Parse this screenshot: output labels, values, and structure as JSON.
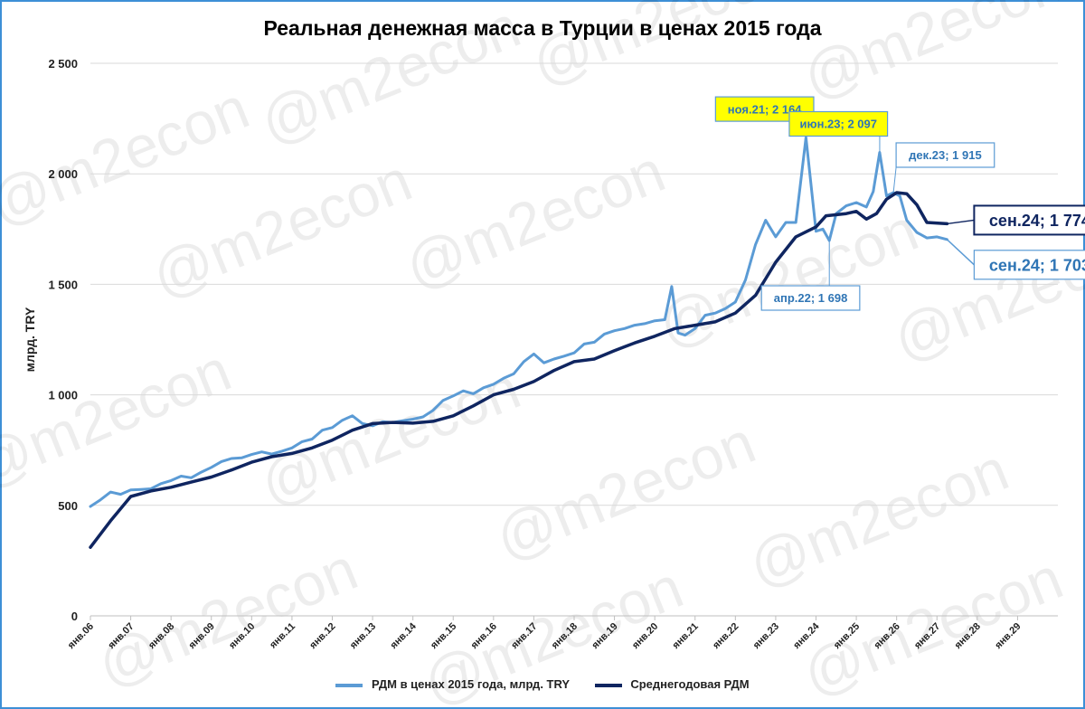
{
  "colors": {
    "series_light": "#5b9bd5",
    "series_dark": "#0f2560",
    "grid": "#d9d9d9",
    "callout_yellow": "#ffff00",
    "frame": "#3d8fd6"
  },
  "watermark_text": "@m2econ",
  "chart_data": {
    "type": "line",
    "title": "Реальная денежная масса в Турции в ценах 2015 года",
    "ylabel": "млрд. TRY",
    "ylim": [
      0,
      2500
    ],
    "yticks": [
      0,
      500,
      1000,
      1500,
      2000,
      2500
    ],
    "ytick_labels": [
      "0",
      "500",
      "1 000",
      "1 500",
      "2 000",
      "2 500"
    ],
    "xlim": [
      2006.0,
      2030.0
    ],
    "xticks": [
      2006,
      2007,
      2008,
      2009,
      2010,
      2011,
      2012,
      2013,
      2014,
      2015,
      2016,
      2017,
      2018,
      2019,
      2020,
      2021,
      2022,
      2023,
      2024,
      2025,
      2026,
      2027,
      2028,
      2029
    ],
    "xtick_labels": [
      "янв.06",
      "янв.07",
      "янв.08",
      "янв.09",
      "янв.10",
      "янв.11",
      "янв.12",
      "янв.13",
      "янв.14",
      "янв.15",
      "янв.16",
      "янв.17",
      "янв.18",
      "янв.19",
      "янв.20",
      "янв.21",
      "янв.22",
      "янв.23",
      "янв.24",
      "янв.25",
      "янв.26",
      "янв.27",
      "янв.28",
      "янв.29"
    ],
    "grid": true,
    "legend_position": "bottom",
    "series": [
      {
        "name": "РДМ в ценах 2015 года, млрд. TRY",
        "color": "#5b9bd5",
        "points": [
          [
            2006.0,
            495
          ],
          [
            2006.25,
            525
          ],
          [
            2006.5,
            560
          ],
          [
            2006.75,
            550
          ],
          [
            2007.0,
            570
          ],
          [
            2007.25,
            572
          ],
          [
            2007.5,
            575
          ],
          [
            2007.75,
            598
          ],
          [
            2008.0,
            612
          ],
          [
            2008.25,
            632
          ],
          [
            2008.5,
            625
          ],
          [
            2008.75,
            650
          ],
          [
            2009.0,
            672
          ],
          [
            2009.25,
            698
          ],
          [
            2009.5,
            712
          ],
          [
            2009.75,
            715
          ],
          [
            2010.0,
            730
          ],
          [
            2010.25,
            742
          ],
          [
            2010.5,
            732
          ],
          [
            2010.75,
            745
          ],
          [
            2011.0,
            760
          ],
          [
            2011.25,
            788
          ],
          [
            2011.5,
            800
          ],
          [
            2011.75,
            840
          ],
          [
            2012.0,
            852
          ],
          [
            2012.25,
            885
          ],
          [
            2012.5,
            905
          ],
          [
            2012.75,
            870
          ],
          [
            2013.0,
            860
          ],
          [
            2013.25,
            878
          ],
          [
            2013.5,
            875
          ],
          [
            2013.75,
            883
          ],
          [
            2014.0,
            890
          ],
          [
            2014.25,
            900
          ],
          [
            2014.5,
            930
          ],
          [
            2014.75,
            975
          ],
          [
            2015.0,
            995
          ],
          [
            2015.25,
            1018
          ],
          [
            2015.5,
            1005
          ],
          [
            2015.75,
            1032
          ],
          [
            2016.0,
            1048
          ],
          [
            2016.25,
            1075
          ],
          [
            2016.5,
            1095
          ],
          [
            2016.75,
            1150
          ],
          [
            2017.0,
            1185
          ],
          [
            2017.25,
            1145
          ],
          [
            2017.5,
            1162
          ],
          [
            2017.75,
            1175
          ],
          [
            2018.0,
            1190
          ],
          [
            2018.25,
            1230
          ],
          [
            2018.5,
            1238
          ],
          [
            2018.75,
            1275
          ],
          [
            2019.0,
            1290
          ],
          [
            2019.25,
            1300
          ],
          [
            2019.5,
            1315
          ],
          [
            2019.75,
            1322
          ],
          [
            2020.0,
            1335
          ],
          [
            2020.25,
            1340
          ],
          [
            2020.42,
            1490
          ],
          [
            2020.58,
            1280
          ],
          [
            2020.75,
            1270
          ],
          [
            2021.0,
            1300
          ],
          [
            2021.25,
            1360
          ],
          [
            2021.5,
            1370
          ],
          [
            2021.75,
            1390
          ],
          [
            2022.0,
            1420
          ],
          [
            2022.25,
            1520
          ],
          [
            2022.5,
            1680
          ],
          [
            2022.75,
            1790
          ],
          [
            2023.0,
            1715
          ],
          [
            2023.25,
            1780
          ],
          [
            2023.5,
            1780
          ],
          [
            2023.75,
            2164
          ],
          [
            2024.0,
            1740
          ],
          [
            2024.17,
            1750
          ],
          [
            2024.33,
            1698
          ],
          [
            2024.5,
            1820
          ],
          [
            2024.75,
            1855
          ],
          [
            2025.0,
            1870
          ],
          [
            2025.25,
            1850
          ],
          [
            2025.42,
            1920
          ],
          [
            2025.58,
            2097
          ],
          [
            2025.75,
            1900
          ],
          [
            2025.92,
            1915
          ],
          [
            2026.08,
            1900
          ],
          [
            2026.25,
            1790
          ],
          [
            2026.5,
            1735
          ],
          [
            2026.75,
            1710
          ],
          [
            2027.0,
            1715
          ],
          [
            2027.25,
            1703
          ]
        ]
      },
      {
        "name": "Среднегодовая РДМ",
        "color": "#0f2560",
        "points": [
          [
            2006.0,
            310
          ],
          [
            2006.5,
            430
          ],
          [
            2007.0,
            540
          ],
          [
            2007.5,
            565
          ],
          [
            2008.0,
            582
          ],
          [
            2008.5,
            605
          ],
          [
            2009.0,
            628
          ],
          [
            2009.5,
            660
          ],
          [
            2010.0,
            695
          ],
          [
            2010.5,
            720
          ],
          [
            2011.0,
            735
          ],
          [
            2011.5,
            760
          ],
          [
            2012.0,
            795
          ],
          [
            2012.5,
            840
          ],
          [
            2013.0,
            870
          ],
          [
            2013.5,
            875
          ],
          [
            2014.0,
            872
          ],
          [
            2014.5,
            880
          ],
          [
            2015.0,
            905
          ],
          [
            2015.5,
            950
          ],
          [
            2016.0,
            1000
          ],
          [
            2016.5,
            1025
          ],
          [
            2017.0,
            1060
          ],
          [
            2017.5,
            1110
          ],
          [
            2018.0,
            1150
          ],
          [
            2018.5,
            1162
          ],
          [
            2019.0,
            1200
          ],
          [
            2019.5,
            1235
          ],
          [
            2020.0,
            1265
          ],
          [
            2020.5,
            1300
          ],
          [
            2021.0,
            1315
          ],
          [
            2021.5,
            1330
          ],
          [
            2022.0,
            1370
          ],
          [
            2022.5,
            1450
          ],
          [
            2023.0,
            1600
          ],
          [
            2023.5,
            1715
          ],
          [
            2024.0,
            1760
          ],
          [
            2024.25,
            1810
          ],
          [
            2024.75,
            1820
          ],
          [
            2025.0,
            1830
          ],
          [
            2025.25,
            1795
          ],
          [
            2025.5,
            1820
          ],
          [
            2025.75,
            1885
          ],
          [
            2026.0,
            1915
          ],
          [
            2026.25,
            1910
          ],
          [
            2026.5,
            1860
          ],
          [
            2026.75,
            1780
          ],
          [
            2027.25,
            1774
          ]
        ]
      }
    ],
    "annotations": [
      {
        "text": "ноя.21; 2 164",
        "x": 2023.75,
        "y": 2164,
        "style": "yellow",
        "position": "upper-left"
      },
      {
        "text": "июн.23; 2 097",
        "x": 2025.58,
        "y": 2097,
        "style": "yellow",
        "position": "upper-left"
      },
      {
        "text": "дек.23; 1 915",
        "x": 2025.92,
        "y": 1915,
        "style": "light",
        "position": "above-right"
      },
      {
        "text": "апр.22; 1 698",
        "x": 2024.33,
        "y": 1698,
        "style": "light",
        "position": "below"
      },
      {
        "text": "сен.24; 1 774",
        "x": 2027.25,
        "y": 1774,
        "style": "dark-large",
        "position": "right"
      },
      {
        "text": "сен.24; 1 703",
        "x": 2027.25,
        "y": 1703,
        "style": "light-large",
        "position": "right"
      }
    ]
  }
}
